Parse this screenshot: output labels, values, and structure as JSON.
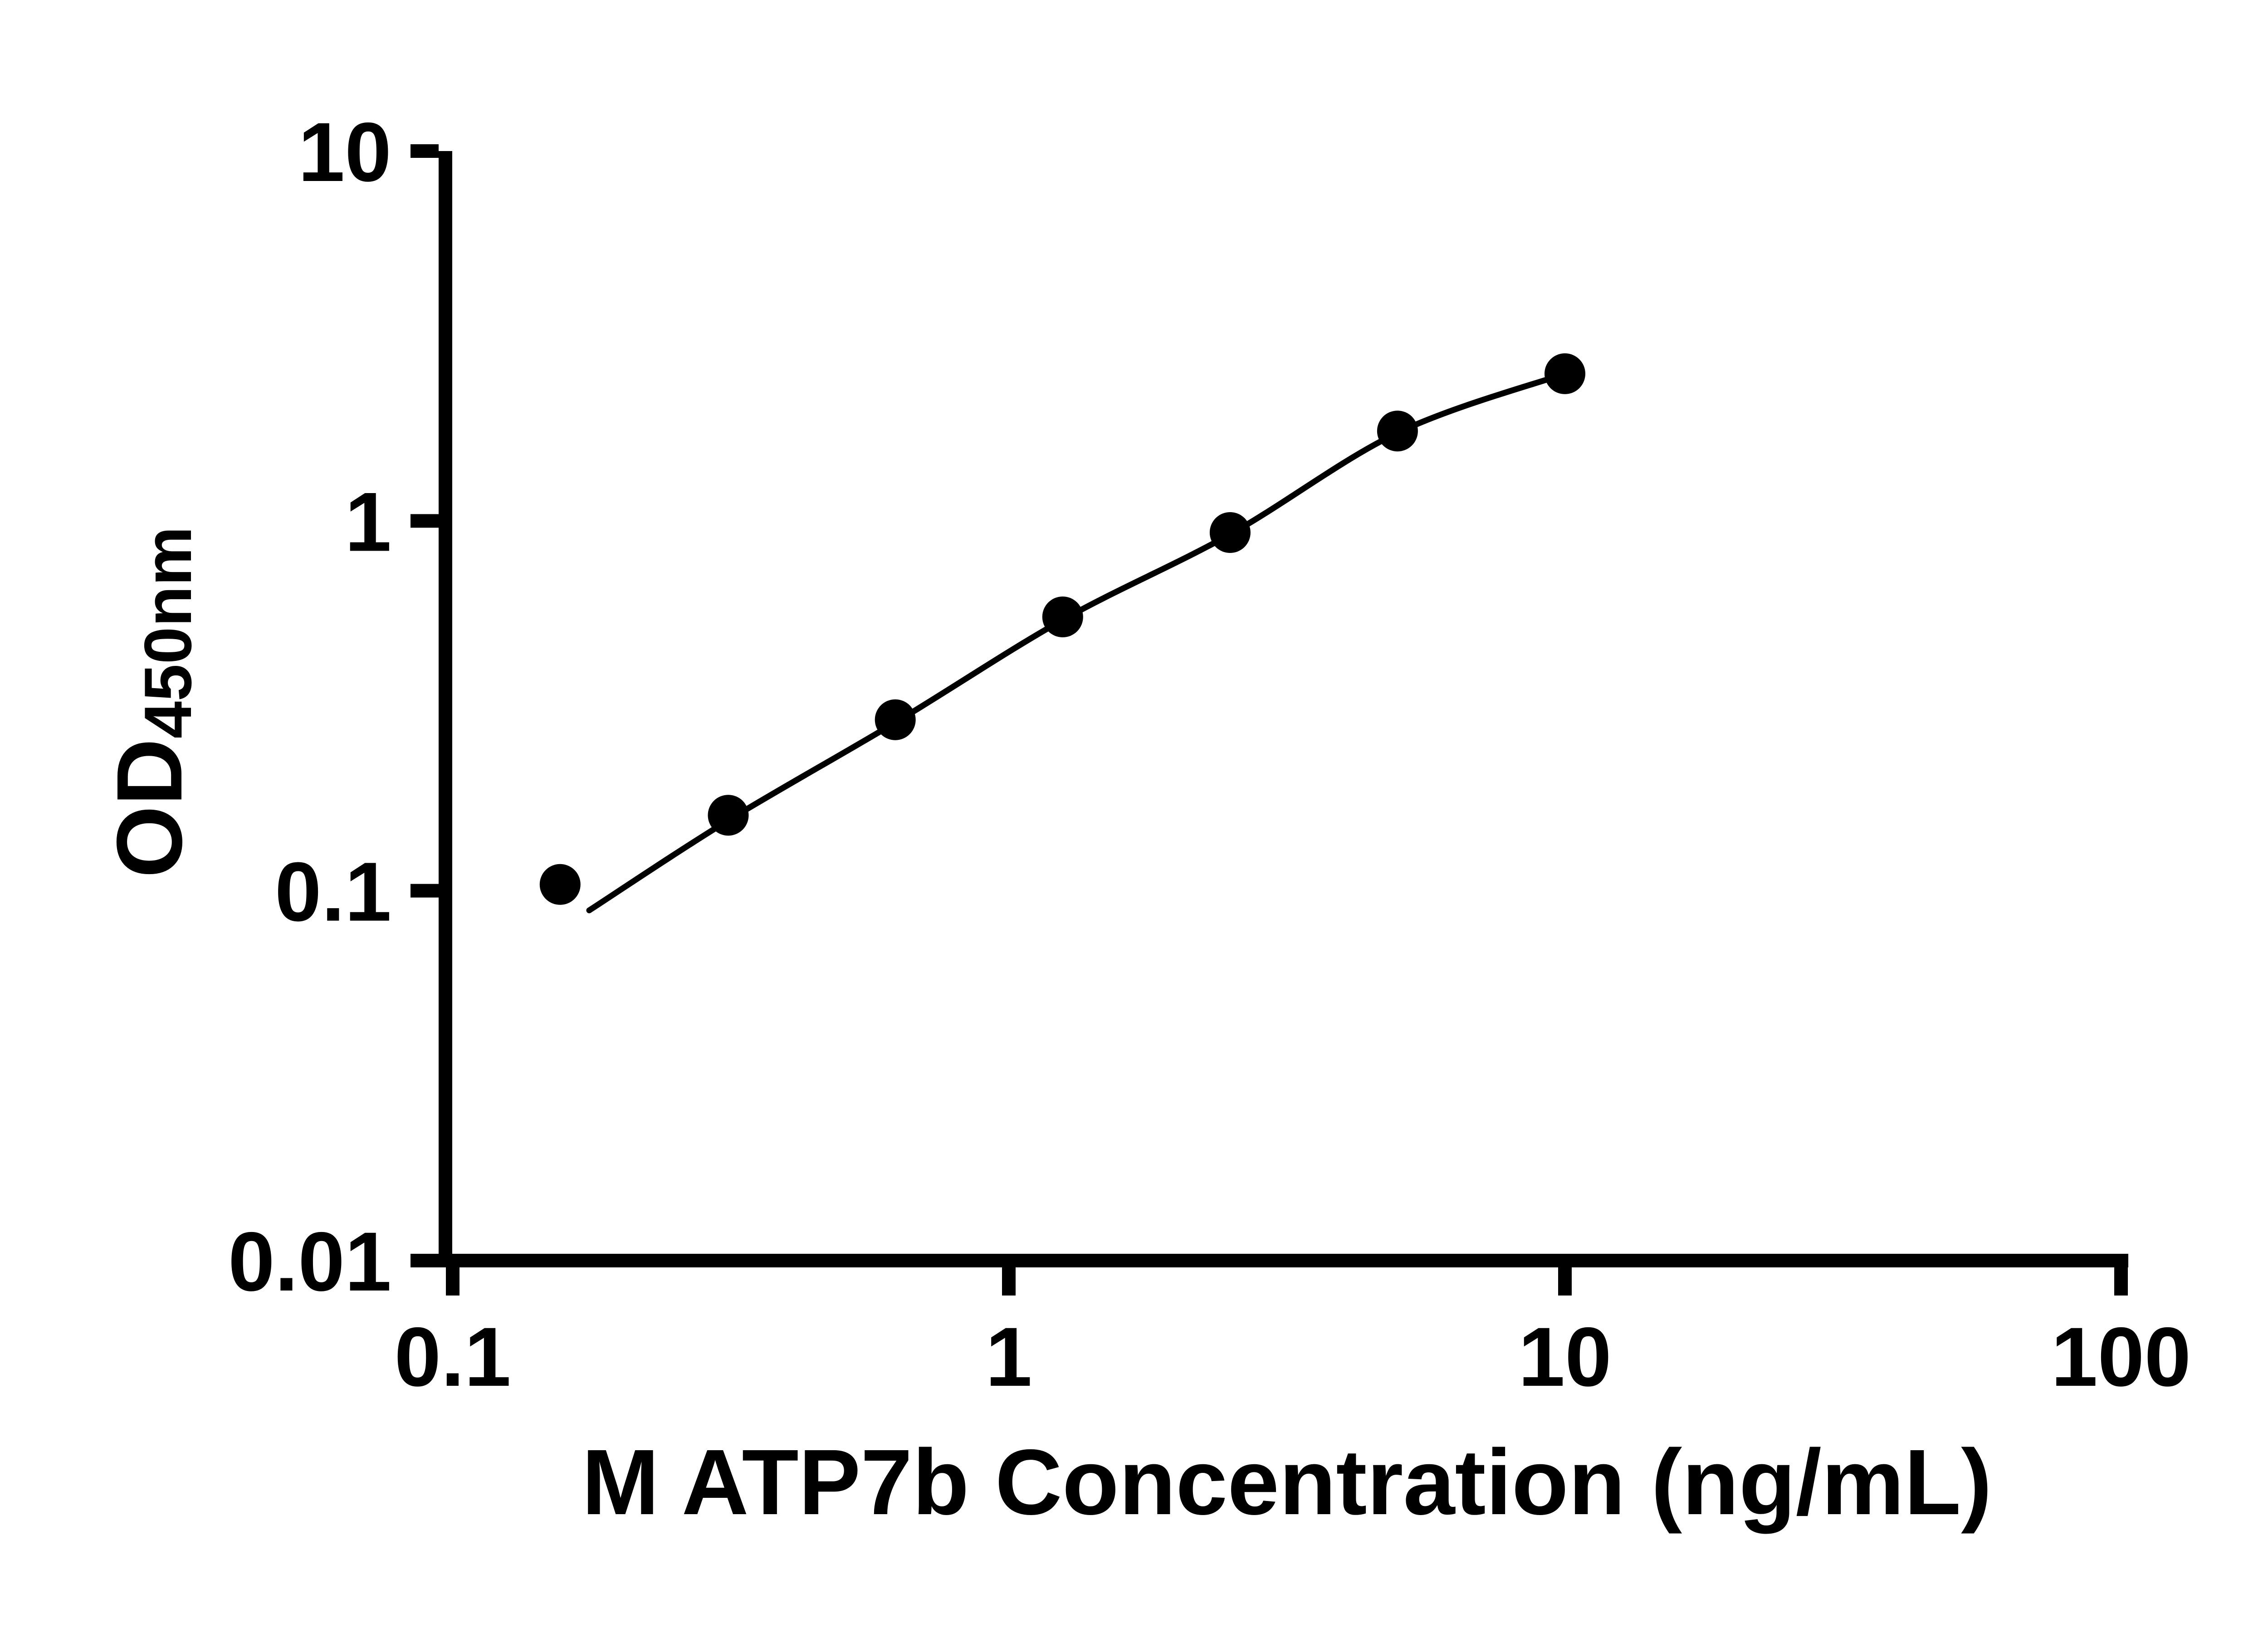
{
  "page": {
    "background_color": "#ffffff",
    "foreground_color": "#000000"
  },
  "chart_data": {
    "type": "scatter",
    "title": "",
    "xlabel": "M ATP7b Concentration (ng/mL)",
    "ylabel_base": "OD",
    "ylabel_sub": "450nm",
    "x_scale": "log",
    "y_scale": "log",
    "xlim": [
      0.1,
      100
    ],
    "ylim": [
      0.01,
      10
    ],
    "grid": false,
    "legend": false,
    "x_ticks": [
      {
        "value": 0.1,
        "label": "0.1"
      },
      {
        "value": 1,
        "label": "1"
      },
      {
        "value": 10,
        "label": "10"
      },
      {
        "value": 100,
        "label": "100"
      }
    ],
    "y_ticks": [
      {
        "value": 10,
        "label": "10"
      },
      {
        "value": 1,
        "label": "1"
      },
      {
        "value": 0.1,
        "label": "0.1"
      },
      {
        "value": 0.01,
        "label": "0.01"
      }
    ],
    "series": [
      {
        "name": "standard-curve-points",
        "marker": "filled-circle",
        "x": [
          0.156,
          0.313,
          0.625,
          1.25,
          2.5,
          5,
          10
        ],
        "y": [
          0.104,
          0.16,
          0.29,
          0.55,
          0.93,
          1.75,
          2.5
        ]
      }
    ],
    "fit_curve": {
      "name": "four-parameter-fit",
      "x": [
        0.176,
        0.313,
        0.625,
        1.25,
        2.5,
        5,
        10
      ],
      "y": [
        0.0885,
        0.155,
        0.285,
        0.54,
        0.92,
        1.73,
        2.5
      ]
    },
    "marker_color": "#000000",
    "line_color": "#000000",
    "axis_color": "#000000"
  }
}
